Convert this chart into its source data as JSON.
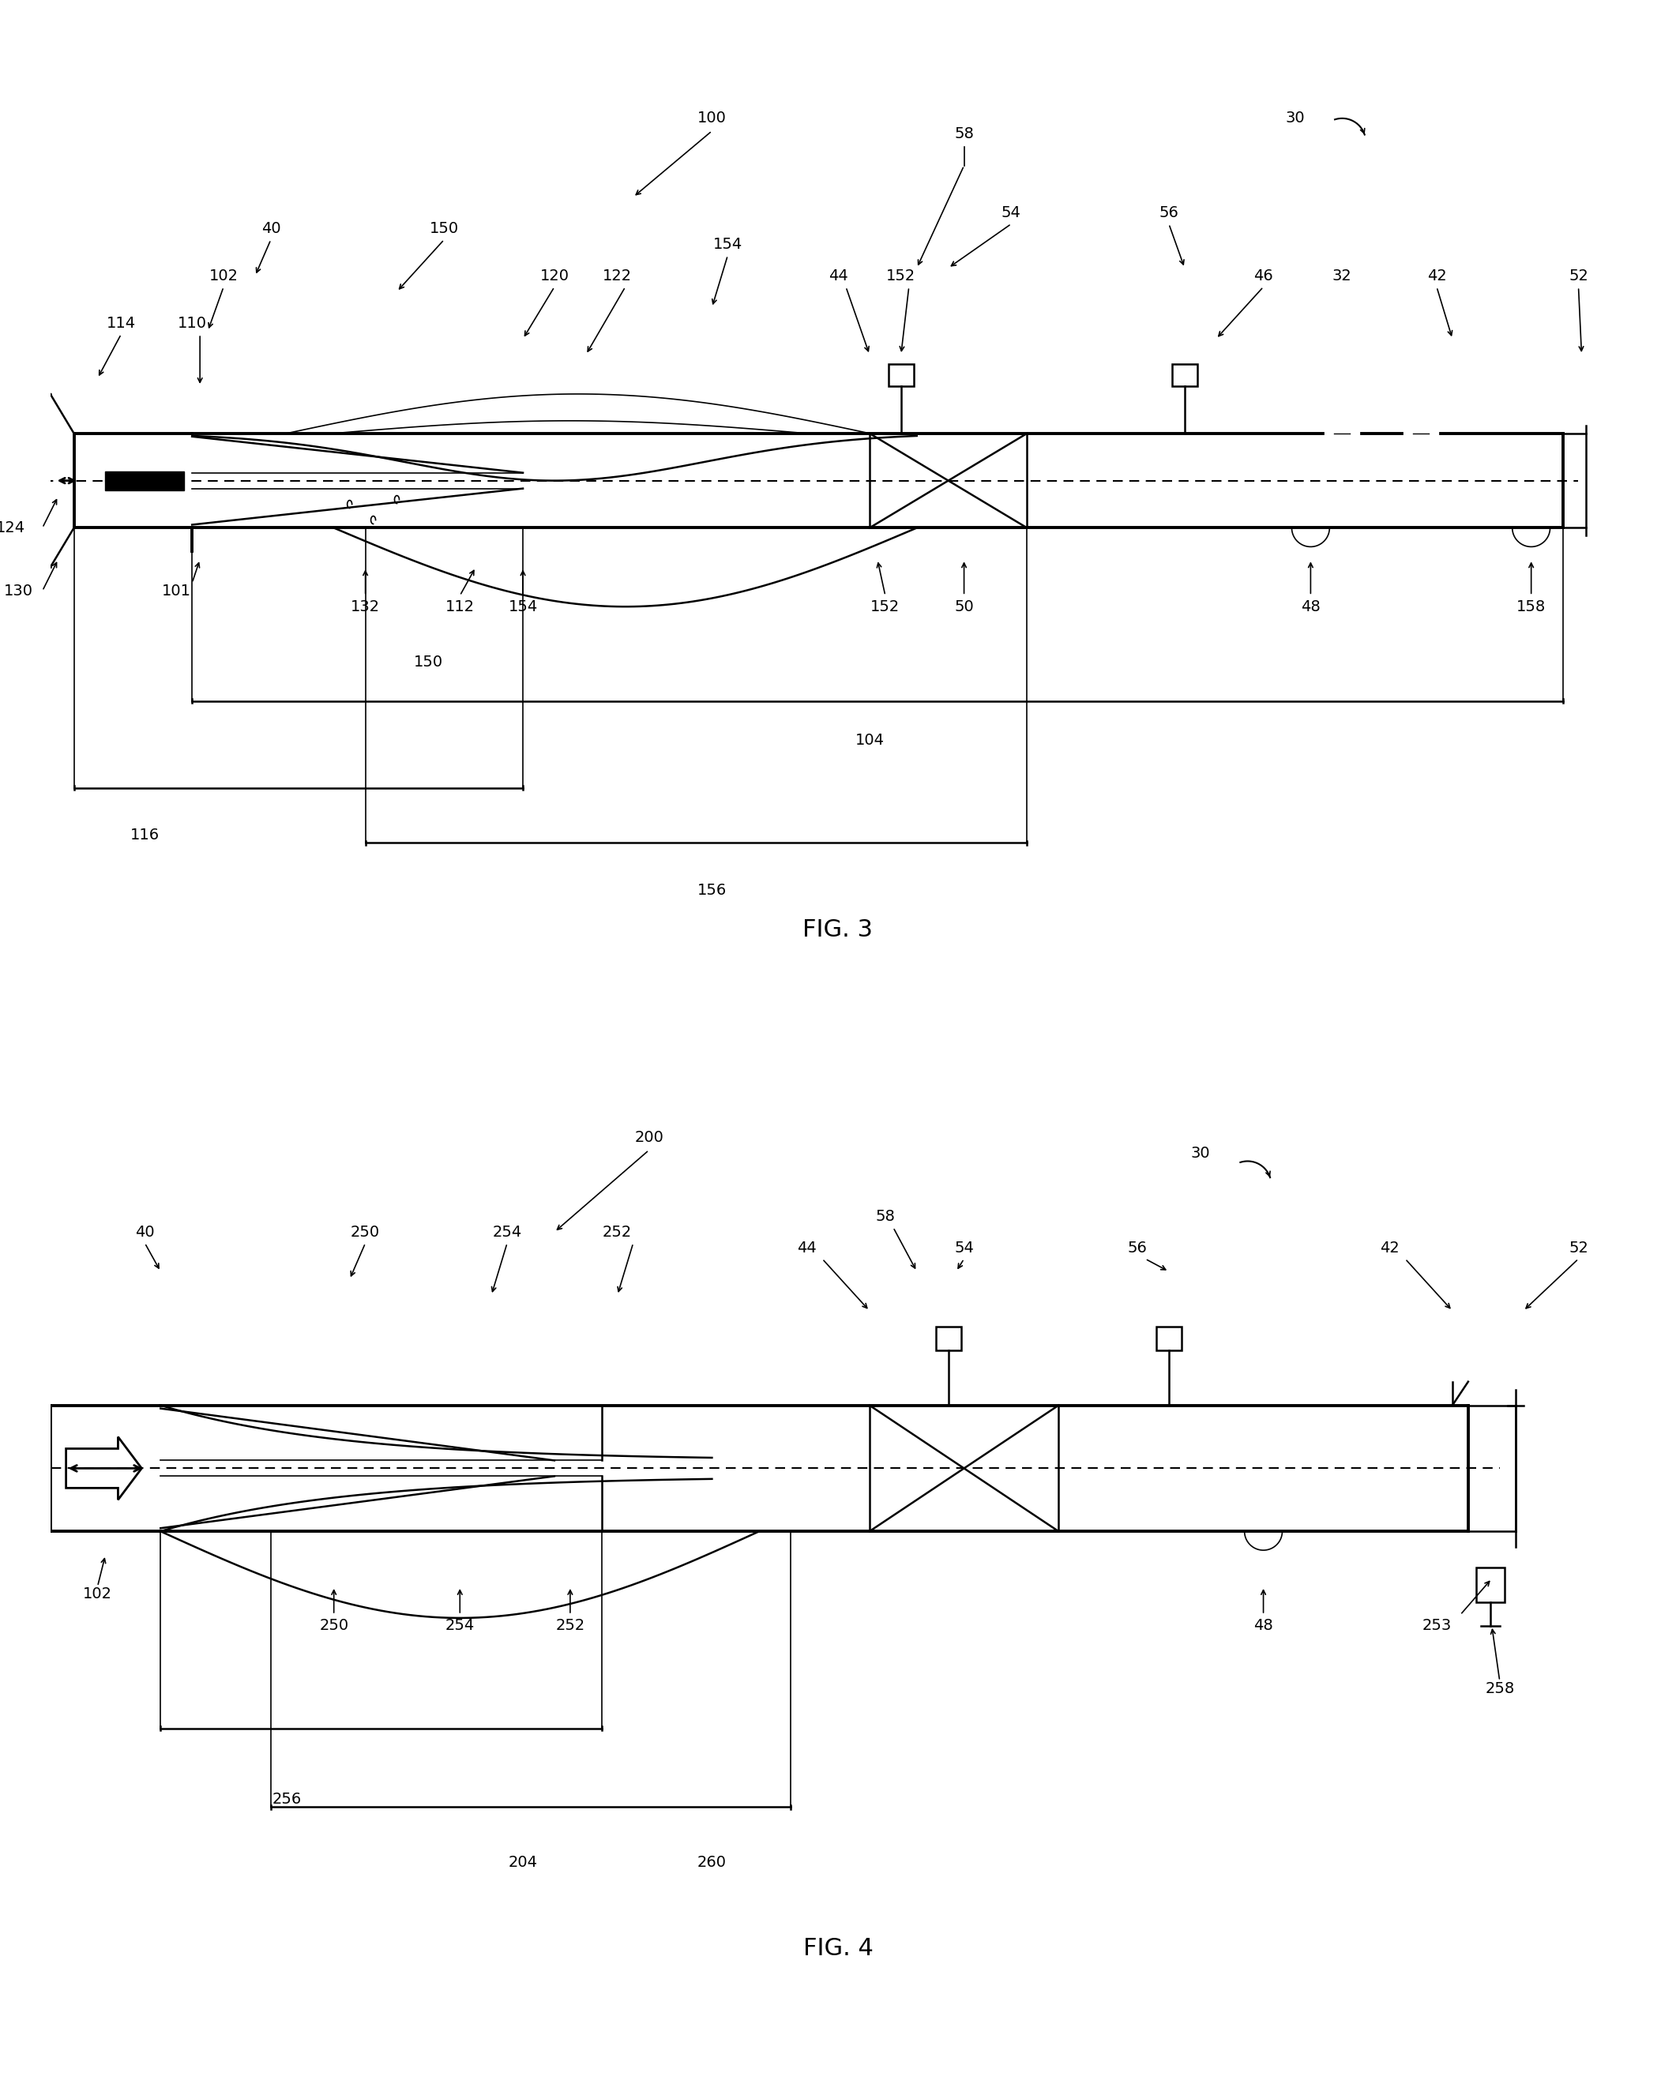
{
  "fig_width": 21.22,
  "fig_height": 26.34,
  "fig3_title": "FIG. 3",
  "fig4_title": "FIG. 4"
}
